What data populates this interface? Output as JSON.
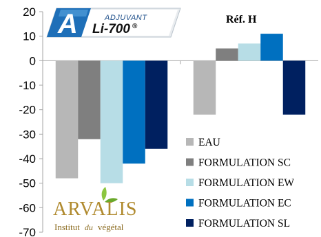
{
  "logos": {
    "adjuvant": {
      "letter": "A",
      "word": "ADJUVANT",
      "product": "Li-700",
      "reg": "®"
    },
    "arvalis": {
      "name": "ARVALIS",
      "tagline_1": "Institut",
      "tagline_2": "du",
      "tagline_3": "végétal"
    }
  },
  "chart_data": {
    "type": "bar",
    "title": "",
    "xlabel": "",
    "ylabel": "",
    "ylim": [
      -70,
      20
    ],
    "yticks": [
      20,
      10,
      0,
      -10,
      -20,
      -30,
      -40,
      -50,
      -60,
      -70
    ],
    "ytick_labels": [
      "20",
      "10",
      "0",
      "-10",
      "-20",
      "-30",
      "-40",
      "-50",
      "-60",
      "-70"
    ],
    "categories": [
      "",
      "Réf. H"
    ],
    "category_labels": [
      "",
      "Réf. H"
    ],
    "grid": false,
    "legend_position": "lower-right",
    "series": [
      {
        "name": "EAU",
        "color": "#b7b7b7",
        "values": [
          -48,
          -22
        ]
      },
      {
        "name": "FORMULATION SC",
        "color": "#7f7f7f",
        "values": [
          -32,
          5
        ]
      },
      {
        "name": "FORMULATION EW",
        "color": "#b7dde6",
        "values": [
          -50,
          7
        ]
      },
      {
        "name": "FORMULATION EC",
        "color": "#0070c0",
        "values": [
          -42,
          11
        ]
      },
      {
        "name": "FORMULATION SL",
        "color": "#002060",
        "values": [
          -36,
          -22
        ]
      }
    ]
  }
}
